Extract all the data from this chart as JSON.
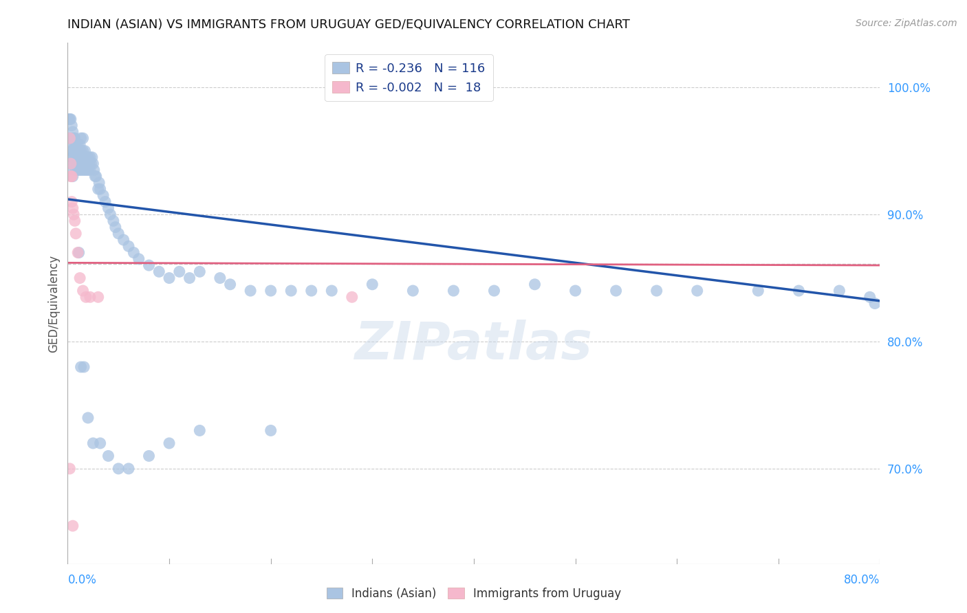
{
  "title": "INDIAN (ASIAN) VS IMMIGRANTS FROM URUGUAY GED/EQUIVALENCY CORRELATION CHART",
  "source": "Source: ZipAtlas.com",
  "ylabel": "GED/Equivalency",
  "xlim": [
    0.0,
    0.8
  ],
  "ylim": [
    0.625,
    1.035
  ],
  "yaxis_values": [
    0.7,
    0.8,
    0.9,
    1.0
  ],
  "blue_color": "#aac4e2",
  "blue_line_color": "#2255aa",
  "pink_color": "#f5b8cc",
  "pink_line_color": "#e06080",
  "watermark": "ZIPatlas",
  "blue_scatter_x": [
    0.002,
    0.003,
    0.003,
    0.004,
    0.004,
    0.005,
    0.005,
    0.006,
    0.006,
    0.006,
    0.007,
    0.007,
    0.007,
    0.008,
    0.008,
    0.008,
    0.009,
    0.009,
    0.01,
    0.01,
    0.01,
    0.011,
    0.011,
    0.012,
    0.012,
    0.012,
    0.013,
    0.013,
    0.013,
    0.014,
    0.014,
    0.015,
    0.015,
    0.015,
    0.016,
    0.016,
    0.017,
    0.017,
    0.018,
    0.018,
    0.019,
    0.02,
    0.02,
    0.021,
    0.022,
    0.022,
    0.023,
    0.024,
    0.025,
    0.026,
    0.027,
    0.028,
    0.03,
    0.031,
    0.032,
    0.035,
    0.037,
    0.04,
    0.042,
    0.045,
    0.047,
    0.05,
    0.055,
    0.06,
    0.065,
    0.07,
    0.08,
    0.09,
    0.1,
    0.11,
    0.12,
    0.13,
    0.15,
    0.16,
    0.18,
    0.2,
    0.22,
    0.24,
    0.26,
    0.3,
    0.34,
    0.38,
    0.42,
    0.46,
    0.5,
    0.54,
    0.58,
    0.62,
    0.68,
    0.72,
    0.76,
    0.79,
    0.795,
    0.001,
    0.002,
    0.003,
    0.004,
    0.005,
    0.006,
    0.007,
    0.008,
    0.009,
    0.01,
    0.011,
    0.013,
    0.016,
    0.02,
    0.025,
    0.032,
    0.04,
    0.05,
    0.06,
    0.08,
    0.1,
    0.13,
    0.2
  ],
  "blue_scatter_y": [
    0.96,
    0.94,
    0.95,
    0.945,
    0.96,
    0.93,
    0.95,
    0.935,
    0.945,
    0.955,
    0.94,
    0.95,
    0.96,
    0.945,
    0.955,
    0.935,
    0.94,
    0.95,
    0.945,
    0.935,
    0.955,
    0.94,
    0.95,
    0.945,
    0.955,
    0.935,
    0.94,
    0.95,
    0.96,
    0.945,
    0.935,
    0.94,
    0.95,
    0.96,
    0.945,
    0.935,
    0.94,
    0.95,
    0.945,
    0.935,
    0.94,
    0.945,
    0.935,
    0.94,
    0.945,
    0.935,
    0.94,
    0.945,
    0.94,
    0.935,
    0.93,
    0.93,
    0.92,
    0.925,
    0.92,
    0.915,
    0.91,
    0.905,
    0.9,
    0.895,
    0.89,
    0.885,
    0.88,
    0.875,
    0.87,
    0.865,
    0.86,
    0.855,
    0.85,
    0.855,
    0.85,
    0.855,
    0.85,
    0.845,
    0.84,
    0.84,
    0.84,
    0.84,
    0.84,
    0.845,
    0.84,
    0.84,
    0.84,
    0.845,
    0.84,
    0.84,
    0.84,
    0.84,
    0.84,
    0.84,
    0.84,
    0.835,
    0.83,
    0.975,
    0.975,
    0.975,
    0.97,
    0.965,
    0.96,
    0.955,
    0.95,
    0.945,
    0.94,
    0.87,
    0.78,
    0.78,
    0.74,
    0.72,
    0.72,
    0.71,
    0.7,
    0.7,
    0.71,
    0.72,
    0.73,
    0.73
  ],
  "pink_scatter_x": [
    0.002,
    0.003,
    0.003,
    0.004,
    0.004,
    0.005,
    0.006,
    0.007,
    0.008,
    0.01,
    0.012,
    0.015,
    0.018,
    0.022,
    0.03,
    0.28,
    0.002,
    0.005
  ],
  "pink_scatter_y": [
    0.96,
    0.94,
    0.93,
    0.93,
    0.91,
    0.905,
    0.9,
    0.895,
    0.885,
    0.87,
    0.85,
    0.84,
    0.835,
    0.835,
    0.835,
    0.835,
    0.7,
    0.655
  ],
  "blue_trend_x0": 0.0,
  "blue_trend_y0": 0.912,
  "blue_trend_x1": 0.8,
  "blue_trend_y1": 0.832,
  "pink_trend_x0": 0.0,
  "pink_trend_y0": 0.862,
  "pink_trend_x1": 0.8,
  "pink_trend_y1": 0.86,
  "hline_y": 0.861,
  "title_fontsize": 13,
  "source_fontsize": 10,
  "legend_text1": "R = -0.236   N = 116",
  "legend_text2": "R = -0.002   N =  18"
}
